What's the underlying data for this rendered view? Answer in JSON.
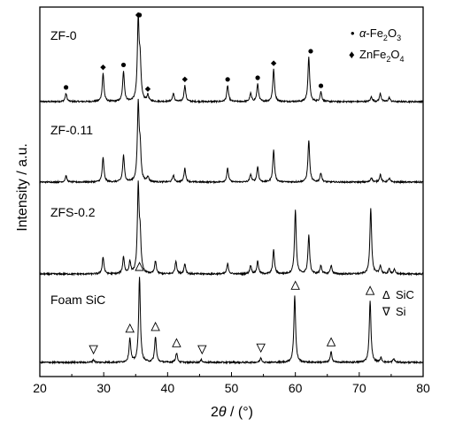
{
  "chart_data": {
    "type": "line",
    "xlabel": {
      "prefix": "2",
      "theta": "θ",
      "suffix": " / (°)"
    },
    "ylabel": "Intensity / a.u.",
    "xlim": [
      20,
      80
    ],
    "xticks": [
      "20",
      "30",
      "40",
      "50",
      "60",
      "70",
      "80"
    ],
    "series": [
      {
        "name": "ZF-0",
        "peaks": [
          [
            24.1,
            0.1
          ],
          [
            29.9,
            0.35
          ],
          [
            33.1,
            0.38
          ],
          [
            35.4,
            1.0
          ],
          [
            35.7,
            0.45
          ],
          [
            36.9,
            0.08
          ],
          [
            40.9,
            0.1
          ],
          [
            42.7,
            0.2
          ],
          [
            49.4,
            0.2
          ],
          [
            53.0,
            0.1
          ],
          [
            54.1,
            0.22
          ],
          [
            56.6,
            0.4
          ],
          [
            62.1,
            0.55
          ],
          [
            64.0,
            0.12
          ],
          [
            71.9,
            0.06
          ],
          [
            73.3,
            0.1
          ],
          [
            74.7,
            0.05
          ]
        ]
      },
      {
        "name": "ZF-0.11",
        "peaks": [
          [
            24.1,
            0.08
          ],
          [
            29.9,
            0.32
          ],
          [
            33.1,
            0.35
          ],
          [
            35.4,
            1.0
          ],
          [
            35.7,
            0.4
          ],
          [
            36.9,
            0.07
          ],
          [
            40.9,
            0.09
          ],
          [
            42.7,
            0.18
          ],
          [
            49.4,
            0.18
          ],
          [
            53.0,
            0.1
          ],
          [
            54.1,
            0.2
          ],
          [
            56.6,
            0.42
          ],
          [
            62.1,
            0.55
          ],
          [
            64.0,
            0.12
          ],
          [
            71.9,
            0.06
          ],
          [
            73.3,
            0.1
          ],
          [
            74.7,
            0.05
          ]
        ]
      },
      {
        "name": "ZFS-0.2",
        "peaks": [
          [
            29.9,
            0.2
          ],
          [
            33.1,
            0.2
          ],
          [
            34.1,
            0.14
          ],
          [
            35.4,
            1.0
          ],
          [
            35.7,
            0.4
          ],
          [
            38.1,
            0.15
          ],
          [
            41.3,
            0.15
          ],
          [
            42.7,
            0.12
          ],
          [
            49.4,
            0.12
          ],
          [
            53.0,
            0.1
          ],
          [
            54.1,
            0.15
          ],
          [
            56.6,
            0.28
          ],
          [
            60.0,
            0.75
          ],
          [
            62.1,
            0.45
          ],
          [
            64.0,
            0.1
          ],
          [
            65.6,
            0.1
          ],
          [
            71.8,
            0.78
          ],
          [
            73.3,
            0.1
          ],
          [
            74.7,
            0.06
          ],
          [
            75.5,
            0.05
          ]
        ]
      },
      {
        "name": "Foam SiC",
        "peaks": [
          [
            28.4,
            0.03
          ],
          [
            34.1,
            0.28
          ],
          [
            35.6,
            1.0
          ],
          [
            38.1,
            0.3
          ],
          [
            41.4,
            0.11
          ],
          [
            45.3,
            0.03
          ],
          [
            54.6,
            0.05
          ],
          [
            59.9,
            0.78
          ],
          [
            65.6,
            0.12
          ],
          [
            71.7,
            0.72
          ],
          [
            73.4,
            0.05
          ],
          [
            75.4,
            0.04
          ]
        ]
      }
    ],
    "markers": {
      "ZF-0": {
        "hematite": [
          24.1,
          33.1,
          35.6,
          49.4,
          54.1,
          62.4,
          64.0
        ],
        "franklinite": [
          29.9,
          35.4,
          36.9,
          42.7,
          56.6
        ]
      },
      "Foam SiC": {
        "sic": [
          34.1,
          35.6,
          38.1,
          41.4,
          60.0,
          65.6,
          71.7
        ],
        "si": [
          28.4,
          45.4,
          54.6
        ]
      }
    },
    "legends": {
      "top": [
        {
          "symbol": "•",
          "prefix": "α",
          "main": "-Fe",
          "sub1": "2",
          "mid": "O",
          "sub2": "3"
        },
        {
          "symbol": "♦",
          "prefix": "",
          "main": "ZnFe",
          "sub1": "2",
          "mid": "O",
          "sub2": "4"
        }
      ],
      "bottom": [
        {
          "symbol": "Δ",
          "label": "SiC"
        },
        {
          "symbol": "∇",
          "label": "Si"
        }
      ]
    },
    "grid": false
  }
}
